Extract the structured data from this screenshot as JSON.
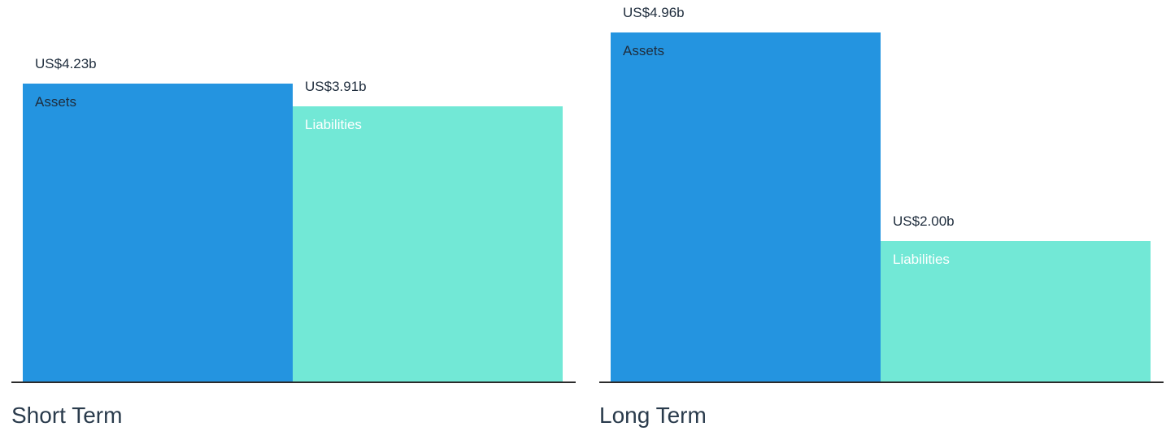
{
  "chart_data": [
    {
      "type": "bar",
      "title": "Short Term",
      "unit_prefix": "US$",
      "unit_suffix": "b",
      "ylim": [
        0,
        4.96
      ],
      "categories": [
        "Assets",
        "Liabilities"
      ],
      "values": [
        4.23,
        3.91
      ],
      "value_labels": [
        "US$4.23b",
        "US$3.91b"
      ],
      "colors": [
        "#2494e0",
        "#72e8d6"
      ],
      "label_colors": [
        "#1f2d3d",
        "#ffffff"
      ]
    },
    {
      "type": "bar",
      "title": "Long Term",
      "unit_prefix": "US$",
      "unit_suffix": "b",
      "ylim": [
        0,
        4.96
      ],
      "categories": [
        "Assets",
        "Liabilities"
      ],
      "values": [
        4.96,
        2.0
      ],
      "value_labels": [
        "US$4.96b",
        "US$2.00b"
      ],
      "colors": [
        "#2494e0",
        "#72e8d6"
      ],
      "label_colors": [
        "#1f2d3d",
        "#ffffff"
      ]
    }
  ]
}
